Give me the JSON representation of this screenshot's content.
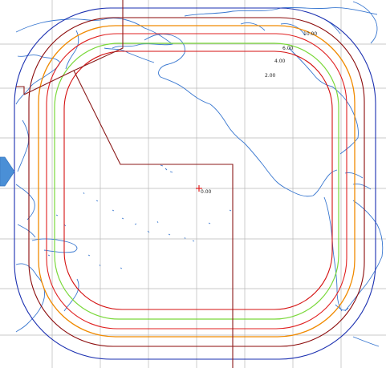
{
  "map": {
    "center_label": "0.00",
    "contour_labels": [
      "2.00",
      "4.00",
      "6.00",
      "10.00"
    ],
    "colors": {
      "background": "#ffffff",
      "grid": "#b8b8b8",
      "coast": "#3a78d0",
      "boundary": "#8b1a1a",
      "contour_outer": "#1a2fb0",
      "contour_2": "#8b0a0a",
      "contour_orange": "#f08a00",
      "contour_red": "#e02020",
      "contour_green": "#7ad83a",
      "contour_inner": "#d41010",
      "center_marker": "#e02020",
      "arrow": "#4a8fd6"
    }
  }
}
